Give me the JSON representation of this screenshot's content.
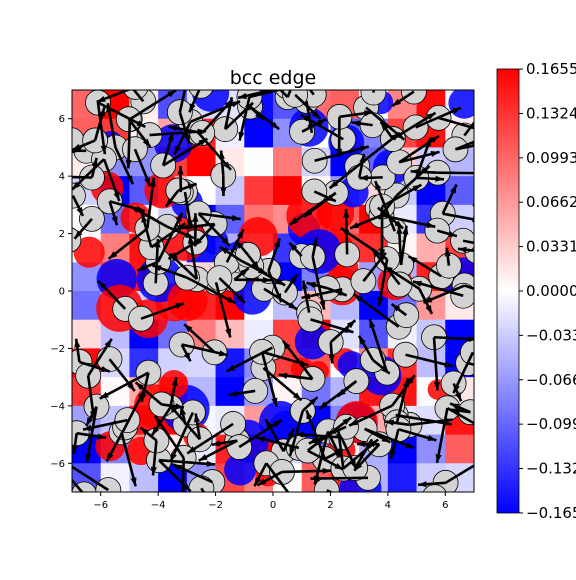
{
  "chart_data": {
    "type": "heatmap",
    "title": "bcc edge",
    "xlabel": "",
    "ylabel": "",
    "xlim": [
      -7,
      7
    ],
    "ylim": [
      -7,
      7
    ],
    "x_ticks": [
      -6,
      -4,
      -2,
      0,
      2,
      4,
      6
    ],
    "y_ticks": [
      -6,
      -4,
      -2,
      0,
      2,
      4,
      6
    ],
    "colormap": "bwr",
    "color_range": [
      -0.16557,
      0.16557
    ],
    "colorbar_ticks": [
      0.1655,
      0.1324,
      0.0993,
      0.0662,
      0.0331,
      0.0,
      -0.0331,
      -0.0662,
      -0.0993,
      -0.1324,
      -0.1655
    ],
    "colorbar_labels": [
      "0.1655",
      "0.1324",
      "0.0993",
      "0.0662",
      "0.0331",
      "0.0000",
      "−0.033",
      "−0.066",
      "−0.099",
      "−0.132",
      "−0.165"
    ],
    "atom_color": "#d3d3d3",
    "arrow_color": "#000000",
    "grid": false
  }
}
